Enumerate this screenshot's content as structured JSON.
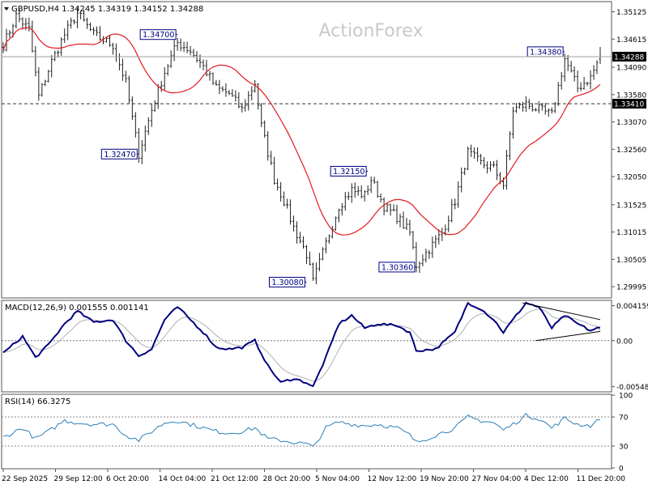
{
  "header": {
    "symbol_line": "GBPUSD,H4  1.34245 1.34319 1.34152 1.34288",
    "watermark": "ActionForex"
  },
  "colors": {
    "candles": "#1f1f1f",
    "moving_average": "#e31a1c",
    "macd_line": "#000080",
    "macd_signal": "#b0b0b0",
    "rsi_line": "#2c7fb8",
    "label_border": "#000080",
    "label_text": "#000080",
    "grid": "#555555"
  },
  "chart_data": [
    {
      "type": "candlestick",
      "title": "GBPUSD,H4",
      "ohlc_last": {
        "open": 1.34245,
        "high": 1.34319,
        "low": 1.34152,
        "close": 1.34288
      },
      "ylim": [
        1.298,
        1.353
      ],
      "y_ticks": [
        "1.35125",
        "1.34615",
        "1.34090",
        "1.33580",
        "1.33070",
        "1.32560",
        "1.32050",
        "1.31525",
        "1.31015",
        "1.30505",
        "1.29995"
      ],
      "current_price_label": "1.34288",
      "dashed_level_label": "1.33410",
      "dashed_level": 1.3341,
      "x_tick_labels": [
        "22 Sep 2025",
        "29 Sep 12:00",
        "6 Oct 20:00",
        "14 Oct 04:00",
        "21 Oct 12:00",
        "28 Oct 20:00",
        "5 Nov 04:00",
        "12 Nov 12:00",
        "19 Nov 20:00",
        "27 Nov 04:00",
        "4 Dec 12:00",
        "11 Dec 20:00"
      ],
      "annotations": [
        {
          "label": "1.34700",
          "price": 1.347,
          "session": 54
        },
        {
          "label": "1.32470",
          "price": 1.3247,
          "session": 42
        },
        {
          "label": "1.32150",
          "price": 1.3215,
          "session": 113
        },
        {
          "label": "1.30080",
          "price": 1.3008,
          "session": 94
        },
        {
          "label": "1.30360",
          "price": 1.3036,
          "session": 128
        },
        {
          "label": "1.34380",
          "price": 1.3438,
          "session": 174
        }
      ],
      "anchors": [
        [
          0,
          1.345
        ],
        [
          4,
          1.3505
        ],
        [
          8,
          1.348
        ],
        [
          11,
          1.3355
        ],
        [
          15,
          1.342
        ],
        [
          19,
          1.347
        ],
        [
          23,
          1.351
        ],
        [
          28,
          1.347
        ],
        [
          34,
          1.345
        ],
        [
          38,
          1.338
        ],
        [
          42,
          1.3247
        ],
        [
          46,
          1.333
        ],
        [
          50,
          1.34
        ],
        [
          54,
          1.3455
        ],
        [
          58,
          1.344
        ],
        [
          62,
          1.341
        ],
        [
          66,
          1.337
        ],
        [
          70,
          1.336
        ],
        [
          74,
          1.333
        ],
        [
          78,
          1.338
        ],
        [
          80,
          1.33
        ],
        [
          84,
          1.32
        ],
        [
          87,
          1.316
        ],
        [
          90,
          1.311
        ],
        [
          94,
          1.306
        ],
        [
          96,
          1.3008
        ],
        [
          100,
          1.308
        ],
        [
          104,
          1.315
        ],
        [
          108,
          1.318
        ],
        [
          112,
          1.317
        ],
        [
          114,
          1.32
        ],
        [
          118,
          1.315
        ],
        [
          122,
          1.313
        ],
        [
          126,
          1.31
        ],
        [
          128,
          1.304
        ],
        [
          132,
          1.307
        ],
        [
          136,
          1.31
        ],
        [
          140,
          1.316
        ],
        [
          144,
          1.325
        ],
        [
          148,
          1.323
        ],
        [
          152,
          1.322
        ],
        [
          155,
          1.319
        ],
        [
          158,
          1.333
        ],
        [
          162,
          1.334
        ],
        [
          166,
          1.333
        ],
        [
          170,
          1.332
        ],
        [
          174,
          1.3425
        ],
        [
          178,
          1.337
        ],
        [
          182,
          1.339
        ],
        [
          185,
          1.343
        ]
      ],
      "sessions": 186
    },
    {
      "type": "line",
      "title": "MACD(12,26,9) 0.001555 0.001141",
      "ylim": [
        -0.006,
        0.0047
      ],
      "y_ticks": [
        "0.004159",
        "0.00",
        "-0.005485"
      ],
      "zero_label": "0.00",
      "macd_last": 0.001555,
      "signal_last": 0.001141,
      "anchors": [
        [
          0,
          -0.0015
        ],
        [
          6,
          0.0005
        ],
        [
          10,
          -0.002
        ],
        [
          14,
          -0.0005
        ],
        [
          19,
          0.002
        ],
        [
          23,
          0.0035
        ],
        [
          28,
          0.0022
        ],
        [
          34,
          0.0025
        ],
        [
          38,
          0.0
        ],
        [
          42,
          -0.0018
        ],
        [
          46,
          -0.001
        ],
        [
          50,
          0.0025
        ],
        [
          54,
          0.004
        ],
        [
          58,
          0.0025
        ],
        [
          62,
          0.001
        ],
        [
          66,
          -0.0008
        ],
        [
          70,
          -0.001
        ],
        [
          74,
          -0.0008
        ],
        [
          78,
          0.0
        ],
        [
          82,
          -0.003
        ],
        [
          86,
          -0.005
        ],
        [
          90,
          -0.0045
        ],
        [
          94,
          -0.005
        ],
        [
          96,
          -0.0055
        ],
        [
          100,
          -0.002
        ],
        [
          104,
          0.002
        ],
        [
          108,
          0.003
        ],
        [
          112,
          0.0015
        ],
        [
          116,
          0.002
        ],
        [
          122,
          0.0018
        ],
        [
          126,
          0.001
        ],
        [
          128,
          -0.0012
        ],
        [
          134,
          -0.001
        ],
        [
          140,
          0.001
        ],
        [
          144,
          0.0045
        ],
        [
          148,
          0.0038
        ],
        [
          152,
          0.0025
        ],
        [
          155,
          0.001
        ],
        [
          158,
          0.0025
        ],
        [
          162,
          0.0045
        ],
        [
          166,
          0.004
        ],
        [
          170,
          0.0015
        ],
        [
          174,
          0.003
        ],
        [
          178,
          0.002
        ],
        [
          182,
          0.0012
        ],
        [
          185,
          0.0016
        ]
      ],
      "triangle": {
        "upper": [
          [
            161,
            0.0045
          ],
          [
            185,
            0.0025
          ]
        ],
        "lower": [
          [
            165,
            0.0
          ],
          [
            185,
            0.0011
          ]
        ]
      }
    },
    {
      "type": "line",
      "title": "RSI(14) 66.3275",
      "ylim": [
        0,
        100
      ],
      "y_ticks": [
        "100",
        "70",
        "30",
        "0"
      ],
      "levels": [
        70,
        30
      ],
      "rsi_last": 66.3275,
      "anchors": [
        [
          0,
          42
        ],
        [
          6,
          55
        ],
        [
          10,
          40
        ],
        [
          14,
          50
        ],
        [
          19,
          65
        ],
        [
          23,
          62
        ],
        [
          28,
          60
        ],
        [
          34,
          60
        ],
        [
          38,
          45
        ],
        [
          42,
          38
        ],
        [
          46,
          50
        ],
        [
          50,
          62
        ],
        [
          54,
          65
        ],
        [
          58,
          60
        ],
        [
          62,
          55
        ],
        [
          66,
          50
        ],
        [
          70,
          48
        ],
        [
          74,
          50
        ],
        [
          78,
          55
        ],
        [
          82,
          40
        ],
        [
          86,
          38
        ],
        [
          90,
          35
        ],
        [
          94,
          33
        ],
        [
          96,
          28
        ],
        [
          100,
          55
        ],
        [
          104,
          63
        ],
        [
          108,
          60
        ],
        [
          112,
          58
        ],
        [
          116,
          60
        ],
        [
          122,
          55
        ],
        [
          126,
          45
        ],
        [
          128,
          35
        ],
        [
          134,
          45
        ],
        [
          140,
          55
        ],
        [
          144,
          70
        ],
        [
          148,
          65
        ],
        [
          152,
          62
        ],
        [
          155,
          52
        ],
        [
          158,
          60
        ],
        [
          162,
          72
        ],
        [
          166,
          68
        ],
        [
          170,
          55
        ],
        [
          174,
          68
        ],
        [
          178,
          60
        ],
        [
          182,
          58
        ],
        [
          185,
          66.3275
        ]
      ]
    }
  ]
}
